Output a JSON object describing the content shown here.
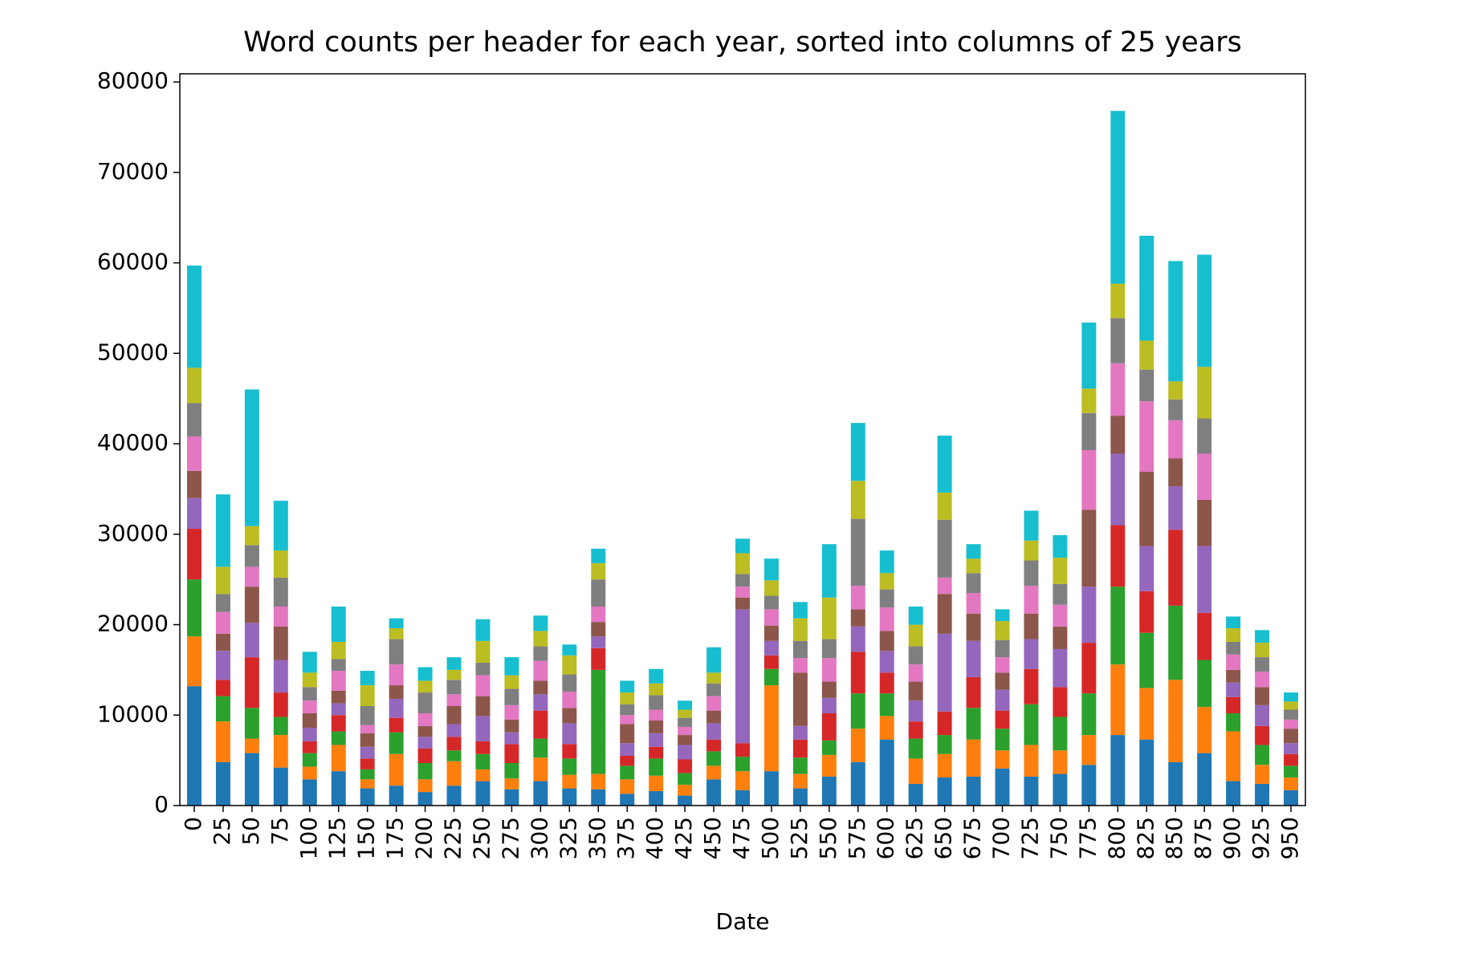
{
  "chart_data": {
    "type": "stacked-bar",
    "title": "Word counts per header for each year, sorted into columns of 25 years",
    "x_label": "Date",
    "categories": [
      "0",
      "25",
      "50",
      "75",
      "100",
      "125",
      "150",
      "175",
      "200",
      "225",
      "250",
      "275",
      "300",
      "325",
      "350",
      "375",
      "400",
      "425",
      "450",
      "475",
      "500",
      "525",
      "550",
      "575",
      "600",
      "625",
      "650",
      "675",
      "700",
      "725",
      "750",
      "775",
      "800",
      "825",
      "850",
      "875",
      "900",
      "925",
      "950"
    ],
    "ylim": [
      0,
      80900
    ],
    "yticks": [
      0,
      10000,
      20000,
      30000,
      40000,
      50000,
      60000,
      70000,
      80000
    ],
    "series": [
      {
        "color": "#1f77b4",
        "values": [
          13200,
          4800,
          5800,
          4200,
          2900,
          3800,
          1900,
          2200,
          1500,
          2200,
          2700,
          1800,
          2700,
          1900,
          1800,
          1300,
          1600,
          1100,
          2900,
          1700,
          3800,
          1900,
          3200,
          4800,
          7300,
          2400,
          3100,
          3200,
          4100,
          3200,
          3500,
          4500,
          7800,
          7300,
          4800,
          5800,
          2700,
          2400,
          1700
        ]
      },
      {
        "color": "#ff7f0e",
        "values": [
          5500,
          4500,
          1600,
          3600,
          1400,
          2900,
          1000,
          3500,
          1400,
          2700,
          1300,
          1200,
          2600,
          1500,
          1700,
          1600,
          1700,
          1200,
          1500,
          2100,
          9500,
          1600,
          2400,
          3700,
          2600,
          2800,
          2600,
          4100,
          2000,
          3500,
          2600,
          3300,
          7800,
          5700,
          9100,
          5100,
          5500,
          2100,
          1400
        ]
      },
      {
        "color": "#2ca02c",
        "values": [
          6300,
          2800,
          3400,
          2000,
          1500,
          1500,
          1100,
          2400,
          1800,
          1200,
          1700,
          1700,
          2100,
          1800,
          11500,
          1500,
          1900,
          1300,
          1600,
          1600,
          1800,
          1800,
          1600,
          3900,
          2500,
          2200,
          2100,
          3500,
          2400,
          4500,
          3700,
          4600,
          8600,
          6100,
          8200,
          5200,
          2000,
          2200,
          1300
        ]
      },
      {
        "color": "#d62728",
        "values": [
          5600,
          1800,
          5600,
          2700,
          1300,
          1800,
          1200,
          1600,
          1600,
          1500,
          1400,
          2100,
          3100,
          1600,
          2400,
          1100,
          1300,
          1500,
          1300,
          1500,
          1500,
          2000,
          3000,
          4600,
          2300,
          1900,
          2600,
          3400,
          2000,
          3900,
          3300,
          5600,
          6800,
          4600,
          8400,
          5200,
          1800,
          2100,
          1300
        ]
      },
      {
        "color": "#9467bd",
        "values": [
          3400,
          3200,
          3800,
          3600,
          1500,
          1300,
          1300,
          2100,
          1300,
          1400,
          2800,
          1300,
          1800,
          2300,
          1300,
          1400,
          1500,
          1600,
          1800,
          14800,
          1600,
          1500,
          1700,
          2800,
          2400,
          2300,
          8600,
          4000,
          2300,
          3300,
          4200,
          6200,
          7900,
          5000,
          4800,
          7400,
          1600,
          2300,
          1200
        ]
      },
      {
        "color": "#8c564b",
        "values": [
          3000,
          1900,
          4000,
          3700,
          1600,
          1400,
          1500,
          1500,
          1200,
          2000,
          2200,
          1400,
          1500,
          1700,
          1600,
          2100,
          1400,
          1100,
          1400,
          1300,
          1700,
          5900,
          1800,
          1900,
          2200,
          2100,
          4400,
          3000,
          1900,
          2800,
          2500,
          8500,
          4200,
          8200,
          3100,
          5100,
          1400,
          2000,
          1600
        ]
      },
      {
        "color": "#e377c2",
        "values": [
          3800,
          2400,
          2200,
          2200,
          1400,
          2200,
          900,
          2300,
          1400,
          1300,
          2300,
          1600,
          2200,
          1800,
          1700,
          1000,
          1200,
          900,
          1600,
          1200,
          1800,
          1600,
          2600,
          2600,
          2600,
          1900,
          1800,
          2300,
          1700,
          3100,
          2400,
          6600,
          5800,
          7800,
          4200,
          5100,
          1700,
          1700,
          1000
        ]
      },
      {
        "color": "#7f7f7f",
        "values": [
          3700,
          2000,
          2400,
          3200,
          1500,
          1300,
          2100,
          2800,
          2300,
          1600,
          1400,
          1800,
          1600,
          1900,
          3000,
          1200,
          1600,
          1000,
          1400,
          1400,
          1500,
          1900,
          2100,
          7400,
          2000,
          2000,
          6400,
          2200,
          1900,
          2800,
          2300,
          4100,
          5000,
          3500,
          2300,
          3900,
          1400,
          1600,
          1100
        ]
      },
      {
        "color": "#bcbd22",
        "values": [
          3900,
          3000,
          2100,
          3000,
          1600,
          1900,
          2300,
          1200,
          1300,
          1100,
          2400,
          1500,
          1700,
          2100,
          1800,
          1300,
          1300,
          900,
          1200,
          2300,
          1700,
          2500,
          4600,
          4200,
          1800,
          2400,
          3000,
          1600,
          2100,
          2200,
          2900,
          2700,
          3800,
          3200,
          2000,
          5700,
          1500,
          1600,
          900
        ]
      },
      {
        "color": "#17becf",
        "values": [
          11300,
          8000,
          15100,
          5500,
          2300,
          3900,
          1600,
          1100,
          1500,
          1400,
          2400,
          2000,
          1700,
          1200,
          1600,
          1300,
          1600,
          1000,
          2800,
          1600,
          2400,
          1800,
          5900,
          6400,
          2500,
          2000,
          6300,
          1600,
          1300,
          3300,
          2500,
          7300,
          19100,
          11600,
          13300,
          12400,
          1300,
          1400,
          1000
        ]
      }
    ]
  }
}
